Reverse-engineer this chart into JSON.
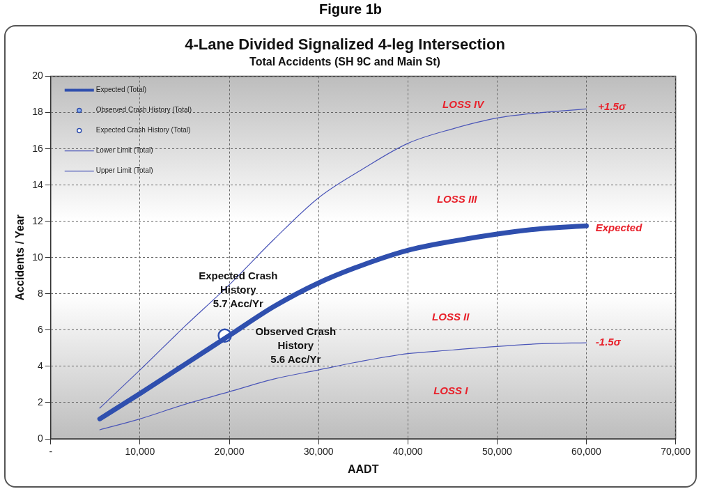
{
  "chart_data": {
    "type": "line",
    "title": "4-Lane Divided Signalized 4-leg Intersection",
    "subtitle": "Total Accidents (SH 9C and Main St)",
    "xlabel": "AADT",
    "ylabel": "Accidents / Year",
    "xlim": [
      0,
      70000
    ],
    "xticks": [
      {
        "value": 0,
        "label": "-"
      },
      {
        "value": 10000,
        "label": "10,000"
      },
      {
        "value": 20000,
        "label": "20,000"
      },
      {
        "value": 30000,
        "label": "30,000"
      },
      {
        "value": 40000,
        "label": "40,000"
      },
      {
        "value": 50000,
        "label": "50,000"
      },
      {
        "value": 60000,
        "label": "60,000"
      },
      {
        "value": 70000,
        "label": "70,000"
      }
    ],
    "ylim": [
      0,
      20
    ],
    "yticks": [
      0,
      2,
      4,
      6,
      8,
      10,
      12,
      14,
      16,
      18,
      20
    ],
    "grid": true,
    "legend": "top left",
    "series": [
      {
        "name": "Expected (Total)",
        "marker": "none",
        "color": "#2f4fae",
        "x": [
          5500,
          10000,
          15000,
          20000,
          25000,
          30000,
          35000,
          40000,
          45000,
          50000,
          55000,
          60000
        ],
        "values": [
          1.1,
          2.5,
          4.1,
          5.7,
          7.3,
          8.6,
          9.6,
          10.4,
          10.9,
          11.3,
          11.6,
          11.75
        ]
      },
      {
        "name": "Observed Crash History (Total)",
        "type": "scatter",
        "color": "#2f4fae",
        "marker": "circle"
      },
      {
        "name": "Expected Crash History (Total)",
        "type": "scatter",
        "marker": "circle",
        "color": "#2f4fae",
        "x": [
          19500
        ],
        "values": [
          5.7
        ]
      },
      {
        "name": "Lower Limit (Total)",
        "marker": "none",
        "color": "#4a55b8",
        "x": [
          5500,
          10000,
          15000,
          20000,
          25000,
          30000,
          35000,
          40000,
          45000,
          50000,
          55000,
          60000
        ],
        "values": [
          0.5,
          1.1,
          1.9,
          2.6,
          3.3,
          3.8,
          4.3,
          4.7,
          4.9,
          5.1,
          5.25,
          5.3
        ]
      },
      {
        "name": "Upper Limit (Total)",
        "marker": "none",
        "color": "#4a55b8",
        "x": [
          5500,
          10000,
          15000,
          20000,
          25000,
          30000,
          35000,
          40000,
          45000,
          50000,
          55000,
          60000
        ],
        "values": [
          1.7,
          3.8,
          6.2,
          8.5,
          11.0,
          13.3,
          14.9,
          16.3,
          17.1,
          17.7,
          18.0,
          18.2
        ]
      }
    ],
    "annotations": [
      "Figure 1b",
      "LOSS IV",
      "LOSS III",
      "LOSS II",
      "LOSS I",
      "+1.5σ",
      "Expected",
      "-1.5σ",
      "Expected Crash\nHistory\n5.7 Acc/Yr",
      "Observed Crash\nHistory\n5.6 Acc/Yr"
    ]
  }
}
